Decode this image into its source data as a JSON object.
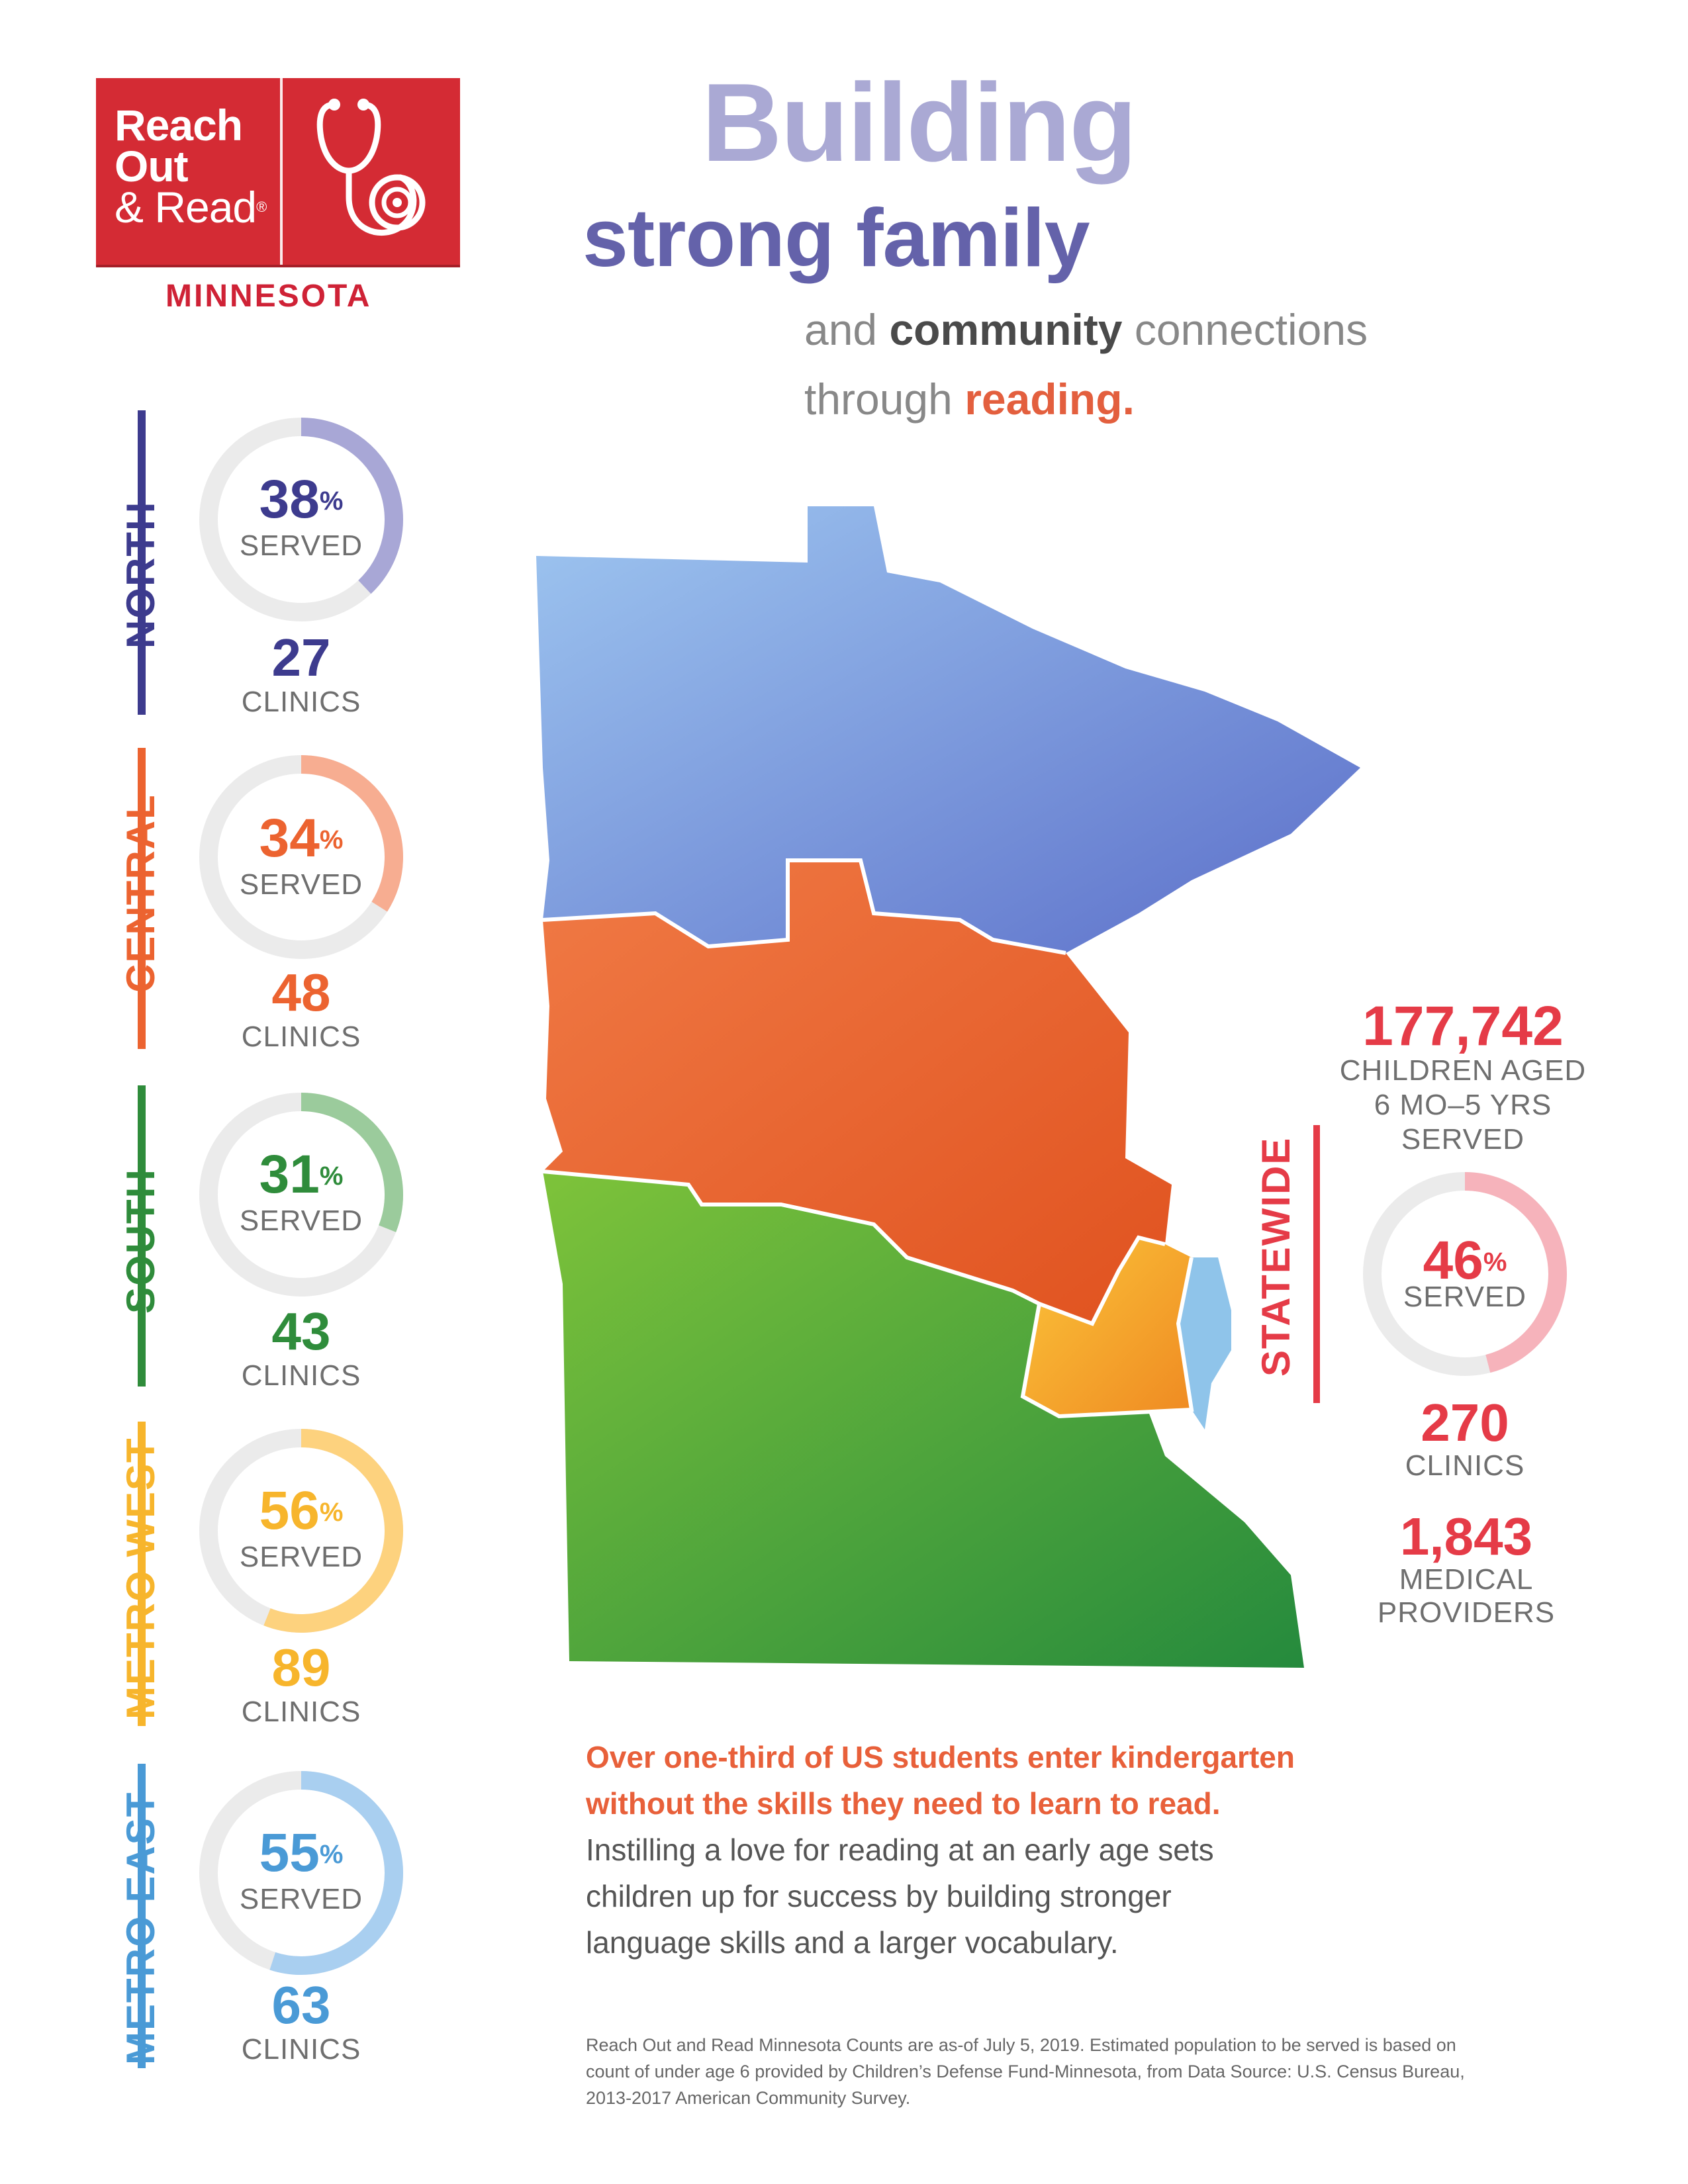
{
  "logo": {
    "line1": "Reach",
    "line2": "Out",
    "line3": "& Read",
    "registered": "®",
    "state": "MINNESOTA",
    "brand_color": "#d42b34",
    "icon": "stethoscope-icon"
  },
  "headline": {
    "word1": "Building",
    "line2": "strong family",
    "line3_pre": "and ",
    "line3_bold": "community",
    "line3_post": " connections",
    "line4_pre": "through ",
    "line4_bold": "reading."
  },
  "regions": [
    {
      "name": "NORTH",
      "percent": 38,
      "pct_label": "38",
      "served_label": "SERVED",
      "clinics": "27",
      "clinics_label": "CLINICS",
      "color": "#3d3b8e",
      "ring_color": "#a8a7d6"
    },
    {
      "name": "CENTRAL",
      "percent": 34,
      "pct_label": "34",
      "served_label": "SERVED",
      "clinics": "48",
      "clinics_label": "CLINICS",
      "color": "#ec6330",
      "ring_color": "#f7ad91"
    },
    {
      "name": "SOUTH",
      "percent": 31,
      "pct_label": "31",
      "served_label": "SERVED",
      "clinics": "43",
      "clinics_label": "CLINICS",
      "color": "#2f8c3b",
      "ring_color": "#9bcb9c"
    },
    {
      "name": "METRO WEST",
      "percent": 56,
      "pct_label": "56",
      "served_label": "SERVED",
      "clinics": "89",
      "clinics_label": "CLINICS",
      "color": "#f7b52c",
      "ring_color": "#fdd27e"
    },
    {
      "name": "METRO EAST",
      "percent": 55,
      "pct_label": "55",
      "served_label": "SERVED",
      "clinics": "63",
      "clinics_label": "CLINICS",
      "color": "#4a9ad6",
      "ring_color": "#a9cff0"
    }
  ],
  "pct_sign": "%",
  "statewide": {
    "label": "STATEWIDE",
    "children": "177,742",
    "children_line1": "CHILDREN AGED",
    "children_line2": "6 MO–5 YRS",
    "children_line3": "SERVED",
    "percent": 46,
    "pct_label": "46",
    "served_label": "SERVED",
    "clinics": "270",
    "clinics_label": "CLINICS",
    "providers": "1,843",
    "providers_line1": "MEDICAL",
    "providers_line2": "PROVIDERS",
    "color": "#e53b47",
    "ring_color": "#f6b3bb"
  },
  "body": {
    "red_line1": "Over one-third of US students enter kindergarten",
    "red_line2": "without the skills they need to learn to read.",
    "grey_line1": "Instilling a love for reading at an early age sets",
    "grey_line2": "children up for success by building stronger",
    "grey_line3": "language skills and a larger vocabulary."
  },
  "footnote": {
    "line1": "Reach Out and Read Minnesota Counts are as-of July 5, 2019. Estimated population to be served is based on",
    "line2": "count of under age 6 provided by Children’s Defense Fund-Minnesota, from Data Source: U.S. Census Bureau,",
    "line3": "2013-2017 American Community Survey."
  },
  "map": {
    "north_color": "#8fb8ec",
    "central_color": "#ec6330",
    "south_color": "#3f9a35",
    "metro_west_color": "#f7a326",
    "metro_east_color": "#8fc4ea"
  }
}
